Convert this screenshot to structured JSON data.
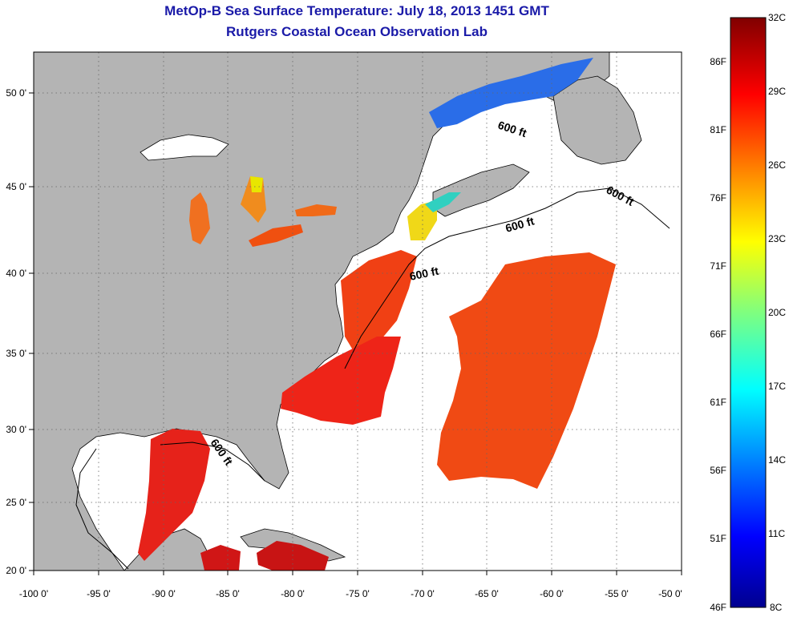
{
  "title": "MetOp-B Sea Surface Temperature:  July 18, 2013 1451 GMT",
  "subtitle": "Rutgers Coastal Ocean Observation Lab",
  "map": {
    "lon_range": [
      -100,
      -50
    ],
    "lat_range": [
      20,
      52.5
    ],
    "lon_ticks": [
      "-100 0'",
      "-95 0'",
      "-90 0'",
      "-85 0'",
      "-80 0'",
      "-75 0'",
      "-70 0'",
      "-65 0'",
      "-60 0'",
      "-55 0'",
      "-50 0'"
    ],
    "lat_ticks": [
      "20 0'",
      "25 0'",
      "30 0'",
      "35 0'",
      "40 0'",
      "45 0'",
      "50 0'"
    ],
    "land_color": "#b4b4b4",
    "no_data_color": "#ffffff",
    "grid": "dotted",
    "contour_label": "600 ft"
  },
  "colorbar": {
    "celsius_labels": [
      "32C",
      "29C",
      "26C",
      "23C",
      "20C",
      "17C",
      "14C",
      "11C",
      "8C"
    ],
    "fahrenheit_labels": [
      "86F",
      "81F",
      "76F",
      "71F",
      "66F",
      "61F",
      "56F",
      "51F",
      "46F"
    ],
    "range_c": [
      8,
      32
    ],
    "colormap": "jet"
  }
}
